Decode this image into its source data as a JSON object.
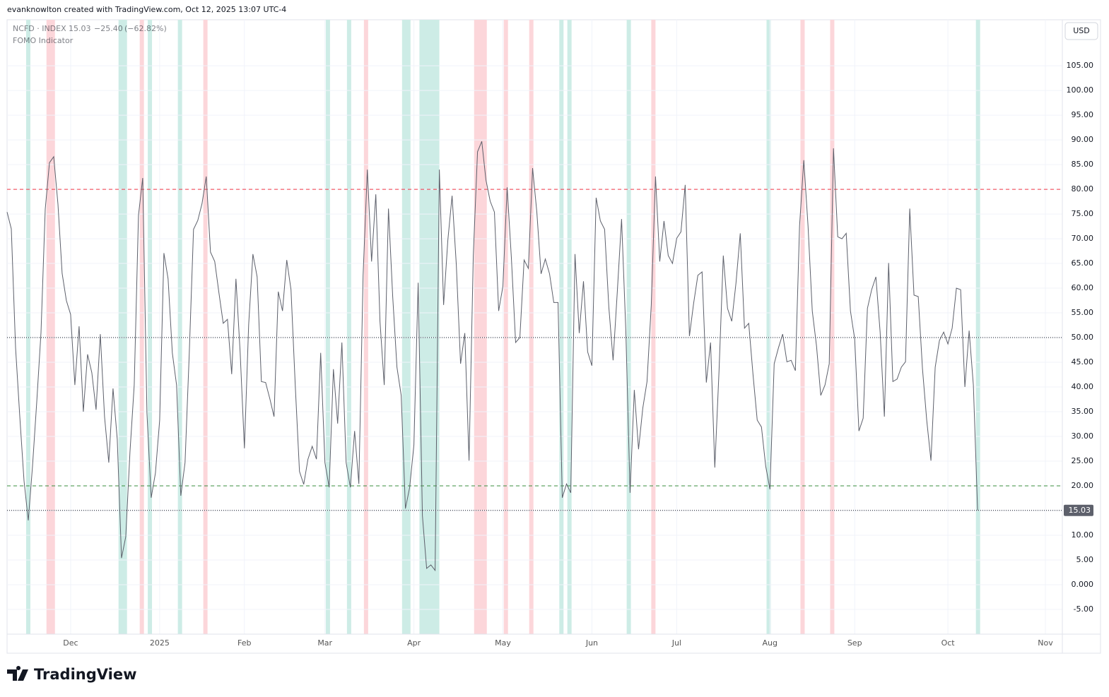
{
  "header": "evanknowlton created with TradingView.com, Oct 12, 2025 13:07 UTC-4",
  "brand": "TradingView",
  "currency_button": "USD",
  "chart_data": {
    "type": "line",
    "symbol": "NCFD · INDEX",
    "change": "−25.40",
    "change_percent": "(−62.82%)",
    "series": [
      {
        "name": "FOMO Indicator",
        "color": "#5d606b",
        "values": [
          75.4,
          72,
          48,
          34,
          21,
          13,
          24,
          37,
          51,
          76,
          85.4,
          86.6,
          77,
          63,
          57.5,
          54.7,
          40.4,
          52.3,
          35,
          46.6,
          42.9,
          35.4,
          50.7,
          34,
          24.7,
          39.7,
          29.4,
          5.4,
          9.7,
          26.9,
          40.4,
          74.7,
          82.3,
          34.7,
          17.6,
          22.6,
          33.3,
          67.1,
          61.9,
          46.9,
          40.4,
          18,
          24.7,
          46.9,
          71.9,
          73.7,
          77.1,
          82.6,
          67.3,
          65.4,
          59,
          52.9,
          53.7,
          42.6,
          61.9,
          46.9,
          27.6,
          52.6,
          66.9,
          62.3,
          41.1,
          40.9,
          37.6,
          34,
          59.3,
          55.4,
          65.7,
          59.7,
          40.4,
          22.9,
          20.3,
          25.4,
          28,
          25.4,
          46.9,
          24.7,
          19.7,
          43.6,
          32.6,
          49,
          24.7,
          19.7,
          31.1,
          20.4,
          62.6,
          84,
          65.4,
          79,
          53.3,
          40.4,
          76.1,
          58.3,
          44,
          38.3,
          15.4,
          19.7,
          28.3,
          61.1,
          14,
          3.3,
          4,
          2.9,
          84,
          56.6,
          69.7,
          78.7,
          64.7,
          44.7,
          50.9,
          25.1,
          66.6,
          87.6,
          89.7,
          81.9,
          77.6,
          75.4,
          55.4,
          60.4,
          80.4,
          66.1,
          49,
          50,
          65.7,
          64,
          84.3,
          75.4,
          62.9,
          65.9,
          62.9,
          57.1,
          57.1,
          17.6,
          20.4,
          18.6,
          66.9,
          50.9,
          61.4,
          47.1,
          44.3,
          78.3,
          73.6,
          71.9,
          56.1,
          45.4,
          59.4,
          74,
          51.4,
          18.6,
          39.4,
          27.4,
          35.7,
          41.1,
          56.6,
          82.6,
          65.4,
          73.6,
          66.6,
          65,
          70.1,
          71.4,
          80.9,
          50.3,
          56.9,
          62.6,
          63.3,
          40.9,
          49,
          23.7,
          43.3,
          66.6,
          55.9,
          53.3,
          61.1,
          71.1,
          51.9,
          52.9,
          42.6,
          33.3,
          31.9,
          24,
          19.3,
          44.7,
          47.9,
          50.7,
          45.1,
          45.4,
          43.3,
          72.6,
          85.9,
          72.6,
          55.4,
          48.3,
          38.3,
          40.4,
          44.7,
          88.3,
          70.4,
          70,
          71.1,
          55.4,
          49.7,
          31.1,
          33.7,
          55.9,
          59.7,
          62.3,
          51.1,
          34,
          65.1,
          41.1,
          41.6,
          44,
          45.1,
          76.1,
          58.6,
          58.3,
          43.7,
          33.3,
          25.1,
          44,
          49.4,
          51.1,
          48.7,
          51.9,
          60,
          59.7,
          40,
          51.4,
          40.4,
          15.03
        ]
      }
    ],
    "xlim": [
      0,
      249
    ],
    "xticks": [
      {
        "value": 15,
        "label": "Dec"
      },
      {
        "value": 36,
        "label": "2025"
      },
      {
        "value": 56,
        "label": "Feb"
      },
      {
        "value": 75,
        "label": "Mar"
      },
      {
        "value": 96,
        "label": "Apr"
      },
      {
        "value": 117,
        "label": "May"
      },
      {
        "value": 138,
        "label": "Jun"
      },
      {
        "value": 158,
        "label": "Jul"
      },
      {
        "value": 180,
        "label": "Aug"
      },
      {
        "value": 200,
        "label": "Sep"
      },
      {
        "value": 222,
        "label": "Oct"
      },
      {
        "value": 245,
        "label": "Nov"
      }
    ],
    "ylim": [
      -10,
      114.3
    ],
    "yticks": [
      {
        "value": -5,
        "label": "-5.00"
      },
      {
        "value": 0,
        "label": "0.000"
      },
      {
        "value": 5,
        "label": "5.00"
      },
      {
        "value": 10,
        "label": "10.00"
      },
      {
        "value": 15,
        "label": "15.00"
      },
      {
        "value": 20,
        "label": "20.00"
      },
      {
        "value": 25,
        "label": "25.00"
      },
      {
        "value": 30,
        "label": "30.00"
      },
      {
        "value": 35,
        "label": "35.00"
      },
      {
        "value": 40,
        "label": "40.00"
      },
      {
        "value": 45,
        "label": "45.00"
      },
      {
        "value": 50,
        "label": "50.00"
      },
      {
        "value": 55,
        "label": "55.00"
      },
      {
        "value": 60,
        "label": "60.00"
      },
      {
        "value": 65,
        "label": "65.00"
      },
      {
        "value": 70,
        "label": "70.00"
      },
      {
        "value": 75,
        "label": "75.00"
      },
      {
        "value": 80,
        "label": "80.00"
      },
      {
        "value": 85,
        "label": "85.00"
      },
      {
        "value": 90,
        "label": "90.00"
      },
      {
        "value": 95,
        "label": "95.00"
      },
      {
        "value": 100,
        "label": "100.00"
      },
      {
        "value": 105,
        "label": "105.00"
      }
    ],
    "grid": true,
    "levels": [
      {
        "value": 80,
        "color": "#f23645",
        "style": "dashed"
      },
      {
        "value": 50,
        "color": "#131722",
        "style": "dotted"
      },
      {
        "value": 20,
        "color": "#388e3c",
        "style": "dashed"
      }
    ],
    "green_bands": {
      "color": "#cdece6",
      "ranges": [
        [
          4.5,
          5.5
        ],
        [
          26.3,
          28.3
        ],
        [
          33.2,
          34.2
        ],
        [
          40.3,
          41.3
        ],
        [
          75.2,
          76.2
        ],
        [
          80.2,
          81.2
        ],
        [
          93.2,
          95.2
        ],
        [
          97.3,
          102
        ],
        [
          130.3,
          131.3
        ],
        [
          132.2,
          133.2
        ],
        [
          146.2,
          147.2
        ],
        [
          179.2,
          180.2
        ],
        [
          228.6,
          229.6
        ]
      ]
    },
    "red_bands": {
      "color": "#fcd6da",
      "ranges": [
        [
          9.3,
          11.3
        ],
        [
          31.3,
          32.3
        ],
        [
          46.3,
          47.3
        ],
        [
          84.2,
          85.2
        ],
        [
          110.2,
          113.2
        ],
        [
          117.2,
          118.2
        ],
        [
          123.2,
          124.2
        ],
        [
          152,
          153
        ],
        [
          187.2,
          188.2
        ],
        [
          194.2,
          195.2
        ]
      ]
    }
  }
}
